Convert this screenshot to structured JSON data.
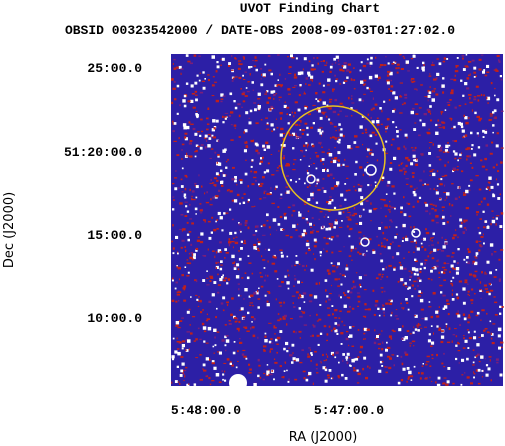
{
  "title": "UVOT Finding Chart",
  "subtitle": "OBSID 00323542000 / DATE-OBS 2008-09-03T01:27:02.0",
  "x_axis": {
    "label": "RA (J2000)",
    "ticks": [
      "5:48:00.0",
      "5:47:00.0"
    ]
  },
  "y_axis": {
    "label": "Dec (J2000)",
    "ticks": [
      "25:00.0",
      "51:20:00.0",
      "15:00.0",
      "10:00.0"
    ]
  }
}
